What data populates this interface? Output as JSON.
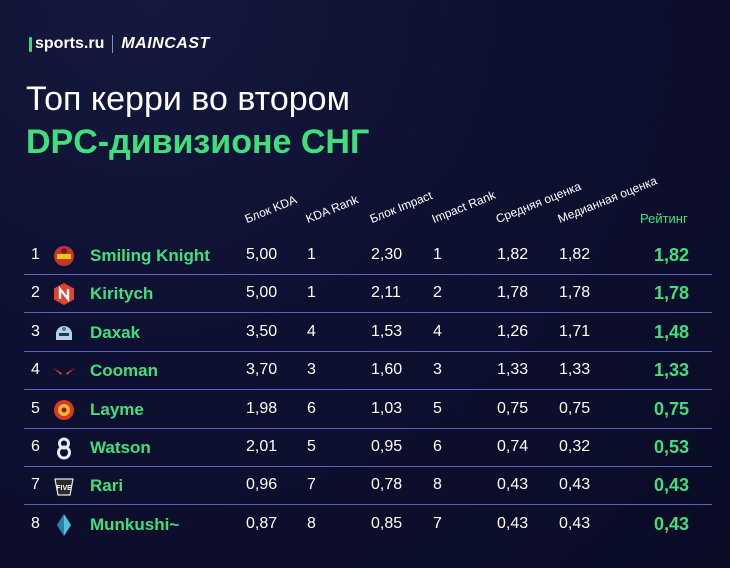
{
  "brand": {
    "sports": "sports.ru",
    "maincast": "MAINCAST"
  },
  "title": {
    "line1": "Топ керри во втором",
    "line2": "DPC-дивизионе СНГ"
  },
  "colors": {
    "accent": "#3fe07c",
    "background": "#0d1030",
    "separator": "#6c6fdc"
  },
  "chart_data": {
    "type": "table",
    "columns": [
      "Блок KDA",
      "KDA Rank",
      "Блок Impact",
      "Impact Rank",
      "Средняя оценка",
      "Медианная оценка",
      "Рейтинг"
    ],
    "rows": [
      {
        "rank": "1",
        "player": "Smiling Knight",
        "logo": "entity-logo",
        "kda_block": "5,00",
        "kda_rank": "1",
        "impact_block": "2,30",
        "impact_rank": "1",
        "avg": "1,82",
        "median": "1,82",
        "rating": "1,82"
      },
      {
        "rank": "2",
        "player": "Kiritych",
        "logo": "nemiga-logo",
        "kda_block": "5,00",
        "kda_rank": "1",
        "impact_block": "2,11",
        "impact_rank": "2",
        "avg": "1,78",
        "median": "1,78",
        "rating": "1,78"
      },
      {
        "rank": "3",
        "player": "Daxak",
        "logo": "helmet-logo",
        "kda_block": "3,50",
        "kda_rank": "4",
        "impact_block": "1,53",
        "impact_rank": "4",
        "avg": "1,26",
        "median": "1,71",
        "rating": "1,48"
      },
      {
        "rank": "4",
        "player": "Cooman",
        "logo": "wings-logo",
        "kda_block": "3,70",
        "kda_rank": "3",
        "impact_block": "1,60",
        "impact_rank": "3",
        "avg": "1,33",
        "median": "1,33",
        "rating": "1,33"
      },
      {
        "rank": "5",
        "player": "Layme",
        "logo": "dragon-logo",
        "kda_block": "1,98",
        "kda_rank": "6",
        "impact_block": "1,03",
        "impact_rank": "5",
        "avg": "0,75",
        "median": "0,75",
        "rating": "0,75"
      },
      {
        "rank": "6",
        "player": "Watson",
        "logo": "b8-logo",
        "kda_block": "2,01",
        "kda_rank": "5",
        "impact_block": "0,95",
        "impact_rank": "6",
        "avg": "0,74",
        "median": "0,32",
        "rating": "0,53"
      },
      {
        "rank": "7",
        "player": "Rari",
        "logo": "five-logo",
        "kda_block": "0,96",
        "kda_rank": "7",
        "impact_block": "0,78",
        "impact_rank": "8",
        "avg": "0,43",
        "median": "0,43",
        "rating": "0,43"
      },
      {
        "rank": "8",
        "player": "Munkushi~",
        "logo": "crystal-logo",
        "kda_block": "0,87",
        "kda_rank": "8",
        "impact_block": "0,85",
        "impact_rank": "7",
        "avg": "0,43",
        "median": "0,43",
        "rating": "0,43"
      }
    ]
  }
}
